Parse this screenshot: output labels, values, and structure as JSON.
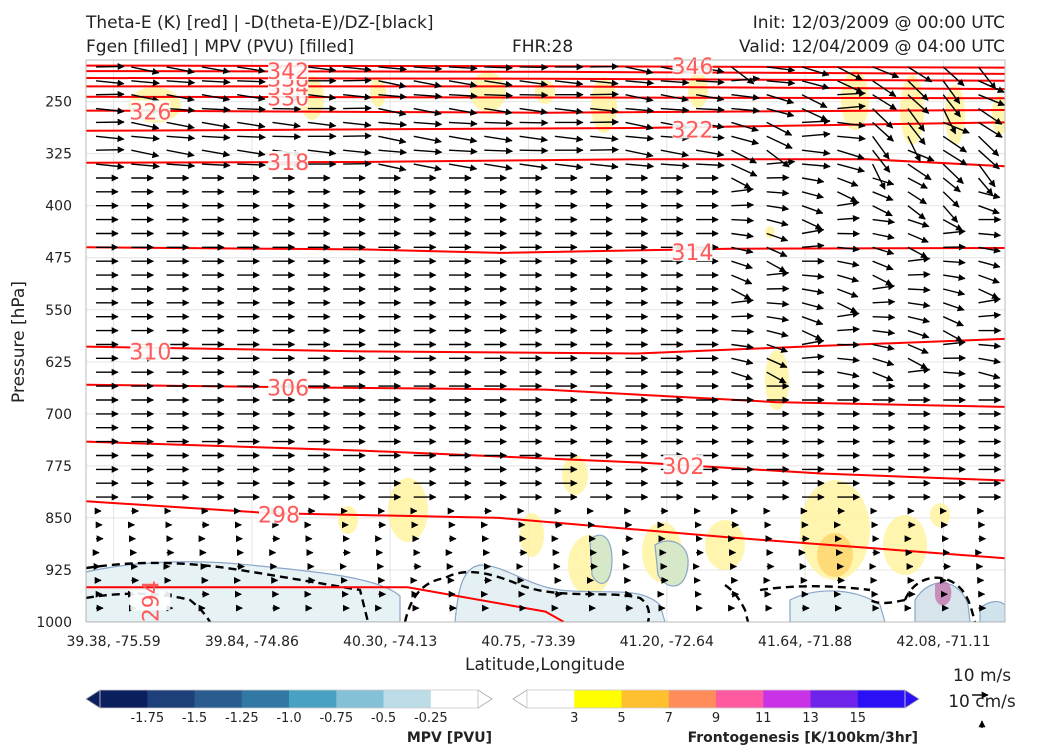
{
  "header": {
    "title_line1": "Theta-E (K) [red] | -D(theta-E)/DZ-[black]",
    "title_line2": "Fgen [filled] | MPV (PVU) [filled]",
    "fhr": "FHR:28",
    "init": "Init: 12/03/2009 @ 00:00 UTC",
    "valid": "Valid: 12/04/2009 @ 04:00 UTC"
  },
  "chart_data": {
    "type": "cross-section",
    "xlabel": "Latitude,Longitude",
    "ylabel": "Pressure [hPa]",
    "x_ticks": [
      "39.38, -75.59",
      "39.84, -74.86",
      "40.30, -74.13",
      "40.75, -73.39",
      "41.20, -72.64",
      "41.64, -71.88",
      "42.08, -71.11"
    ],
    "y_ticks": [
      250,
      325,
      400,
      475,
      550,
      625,
      700,
      775,
      850,
      925,
      1000
    ],
    "ylim": [
      1000,
      190
    ],
    "y_scale": "linear-inverted",
    "grid": true,
    "theta_e_contours": [
      {
        "value": 294,
        "label": "294",
        "color": "#ff0000",
        "points": [
          [
            0,
            950
          ],
          [
            0.35,
            950
          ],
          [
            0.5,
            985
          ],
          [
            0.52,
            1000
          ]
        ]
      },
      {
        "value": 298,
        "label": "298",
        "color": "#ff0000",
        "points": [
          [
            0,
            826
          ],
          [
            0.2,
            843
          ],
          [
            0.45,
            850
          ],
          [
            0.7,
            878
          ],
          [
            1.0,
            908
          ]
        ]
      },
      {
        "value": 302,
        "label": "302",
        "color": "#ff0000",
        "points": [
          [
            0,
            740
          ],
          [
            0.3,
            753
          ],
          [
            0.6,
            770
          ],
          [
            0.8,
            786
          ],
          [
            1.0,
            796
          ]
        ]
      },
      {
        "value": 306,
        "label": "306",
        "color": "#ff0000",
        "points": [
          [
            0,
            658
          ],
          [
            0.25,
            662
          ],
          [
            0.5,
            665
          ],
          [
            0.75,
            683
          ],
          [
            1.0,
            690
          ]
        ]
      },
      {
        "value": 310,
        "label": "310",
        "color": "#ff0000",
        "points": [
          [
            0,
            603
          ],
          [
            0.3,
            610
          ],
          [
            0.6,
            613
          ],
          [
            0.8,
            602
          ],
          [
            1.0,
            592
          ]
        ]
      },
      {
        "value": 314,
        "label": "314",
        "color": "#ff0000",
        "points": [
          [
            0,
            460
          ],
          [
            0.3,
            463
          ],
          [
            0.45,
            468
          ],
          [
            0.7,
            462
          ],
          [
            1.0,
            461
          ]
        ]
      },
      {
        "value": 318,
        "label": "318",
        "color": "#ff0000",
        "points": [
          [
            0,
            338
          ],
          [
            0.3,
            337
          ],
          [
            0.6,
            333
          ],
          [
            0.85,
            333
          ],
          [
            1.0,
            343
          ]
        ]
      },
      {
        "value": 322,
        "label": "322",
        "color": "#ff0000",
        "points": [
          [
            0,
            292
          ],
          [
            0.3,
            290
          ],
          [
            0.6,
            288
          ],
          [
            1.0,
            280
          ]
        ]
      },
      {
        "value": 326,
        "label": "326",
        "color": "#ff0000",
        "points": [
          [
            0,
            263
          ],
          [
            0.5,
            266
          ],
          [
            1.0,
            262
          ]
        ]
      },
      {
        "value": 330,
        "label": "330",
        "color": "#ff0000",
        "points": [
          [
            0,
            243
          ],
          [
            0.5,
            244
          ],
          [
            1.0,
            245
          ]
        ]
      },
      {
        "value": 334,
        "label": "334",
        "color": "#ff0000",
        "points": [
          [
            0,
            228
          ],
          [
            0.5,
            228
          ],
          [
            1.0,
            232
          ]
        ]
      },
      {
        "value": 338,
        "label": "338",
        "color": "#ff0000",
        "points": [
          [
            0,
            216
          ],
          [
            0.5,
            217
          ],
          [
            1.0,
            220
          ]
        ]
      },
      {
        "value": 342,
        "label": "342",
        "color": "#ff0000",
        "points": [
          [
            0,
            206
          ],
          [
            0.5,
            207
          ],
          [
            1.0,
            210
          ]
        ]
      },
      {
        "value": 346,
        "label": "346",
        "color": "#ff0000",
        "points": [
          [
            0,
            198
          ],
          [
            0.5,
            199
          ],
          [
            1.0,
            201
          ]
        ]
      }
    ],
    "mpv_colorbar": {
      "title": "MPV [PVU]",
      "ticks": [
        "-1.75",
        "-1.5",
        "-1.25",
        "-1.0",
        "-0.75",
        "-0.5",
        "-0.25"
      ],
      "colors": [
        "#0b1f5e",
        "#1d3f7a",
        "#2a5c8f",
        "#3278a5",
        "#48a0c2",
        "#84c0d6",
        "#bcdde7",
        "#ffffff"
      ]
    },
    "fgen_colorbar": {
      "title": "Frontogenesis [K/100km/3hr]",
      "ticks": [
        "3",
        "5",
        "7",
        "9",
        "11",
        "13",
        "15"
      ],
      "colors": [
        "#ffffff",
        "#ffff00",
        "#ffc030",
        "#ff8c5a",
        "#ff59a0",
        "#c833e6",
        "#6e23eb",
        "#2a10f5"
      ]
    },
    "wind_reference": {
      "horizontal": "10 m/s",
      "vertical": "10 cm/s"
    },
    "colors": {
      "theta_e": "#ff0000",
      "stability": "#000000",
      "mpv_contour": "#8aa6c8"
    }
  }
}
